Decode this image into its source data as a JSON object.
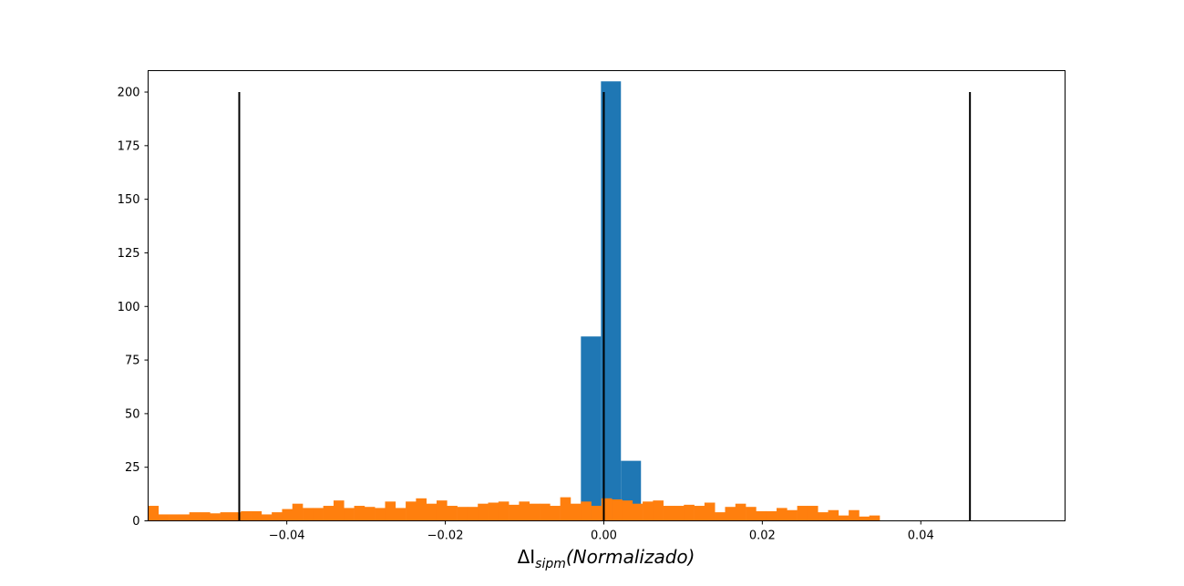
{
  "chart_data": {
    "type": "bar",
    "title": "",
    "xlabel_main": "ΔI",
    "xlabel_sub": "sipm",
    "xlabel_paren": "(Normalizado)",
    "ylabel": "",
    "xlim": [
      -0.0575,
      0.0582
    ],
    "ylim": [
      0,
      210
    ],
    "grid": false,
    "legend": null,
    "xticks": [
      {
        "value": -0.04,
        "label": "−0.04"
      },
      {
        "value": -0.02,
        "label": "−0.02"
      },
      {
        "value": 0.0,
        "label": "0.00"
      },
      {
        "value": 0.02,
        "label": "0.02"
      },
      {
        "value": 0.04,
        "label": "0.04"
      }
    ],
    "yticks": [
      0,
      25,
      50,
      75,
      100,
      125,
      150,
      175,
      200
    ],
    "series": [
      {
        "color": "#1f77b4",
        "bin_edges": [
          -0.00289,
          -0.00036,
          0.00216,
          0.00469
        ],
        "values": [
          86,
          205,
          28
        ]
      },
      {
        "color": "#ff7f0e",
        "bin_start": -0.0575,
        "bin_width": 0.0013,
        "values": [
          7,
          3,
          3,
          3,
          4,
          4,
          3.5,
          4,
          4,
          4.5,
          4.5,
          3,
          4,
          5.5,
          8,
          6,
          6,
          7,
          9.5,
          6,
          7,
          6.5,
          6,
          9,
          6,
          9,
          10.5,
          8,
          9.5,
          7,
          6.5,
          6.5,
          8,
          8.5,
          9,
          7.5,
          9,
          8,
          8,
          7,
          11,
          8,
          9,
          7,
          10.5,
          10,
          9.5,
          8,
          9,
          9.5,
          7,
          7,
          7.5,
          7,
          8.5,
          4,
          6.5,
          8,
          6.5,
          4.5,
          4.5,
          6,
          5,
          7,
          7,
          4,
          5,
          2.5,
          5,
          2,
          2.5
        ]
      }
    ],
    "vlines": [
      {
        "x": -0.046,
        "ymin": 0,
        "ymax": 200,
        "color": "#000000"
      },
      {
        "x": 0.0,
        "ymin": 0,
        "ymax": 200,
        "color": "#000000"
      },
      {
        "x": 0.0462,
        "ymin": 0,
        "ymax": 200,
        "color": "#000000"
      }
    ]
  }
}
